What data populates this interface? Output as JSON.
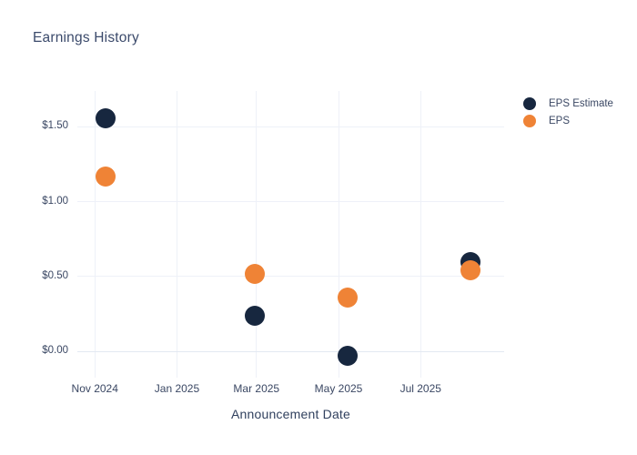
{
  "chart": {
    "title": "Earnings History",
    "xlabel": "Announcement Date"
  },
  "legend": {
    "items": [
      {
        "label": "EPS Estimate",
        "color": "#17273f"
      },
      {
        "label": "EPS",
        "color": "#ef8336"
      }
    ]
  },
  "chart_data": {
    "type": "scatter",
    "title": "Earnings History",
    "xlabel": "Announcement Date",
    "ylabel": "",
    "grid": true,
    "legend_position": "right",
    "x_domain": [
      "2024-10-19",
      "2025-09-01"
    ],
    "y_domain": [
      -0.175,
      1.74
    ],
    "x_ticks": [
      {
        "label": "Nov 2024",
        "date": "2024-11-01"
      },
      {
        "label": "Jan 2025",
        "date": "2025-01-01"
      },
      {
        "label": "Mar 2025",
        "date": "2025-03-01"
      },
      {
        "label": "May 2025",
        "date": "2025-05-01"
      },
      {
        "label": "Jul 2025",
        "date": "2025-07-01"
      }
    ],
    "y_ticks": [
      {
        "label": "$1.50",
        "value": 1.5
      },
      {
        "label": "$1.00",
        "value": 1.0
      },
      {
        "label": "$0.50",
        "value": 0.5
      },
      {
        "label": "$0.00",
        "value": 0.0
      }
    ],
    "series": [
      {
        "name": "EPS Estimate",
        "color": "#17273f",
        "points": [
          {
            "date": "2024-11-09",
            "value": 1.56
          },
          {
            "date": "2025-02-28",
            "value": 0.24
          },
          {
            "date": "2025-05-08",
            "value": -0.03
          },
          {
            "date": "2025-08-07",
            "value": 0.6
          }
        ]
      },
      {
        "name": "EPS",
        "color": "#ef8336",
        "points": [
          {
            "date": "2024-11-09",
            "value": 1.17
          },
          {
            "date": "2025-02-28",
            "value": 0.52
          },
          {
            "date": "2025-05-08",
            "value": 0.36
          },
          {
            "date": "2025-08-07",
            "value": 0.54
          }
        ]
      }
    ],
    "colors": {
      "grid": "#eef1f8",
      "zero_line": "#e3e9f2",
      "title_text": "#3b4a6b",
      "axis_text": "#3a4763",
      "background": "#ffffff"
    }
  }
}
